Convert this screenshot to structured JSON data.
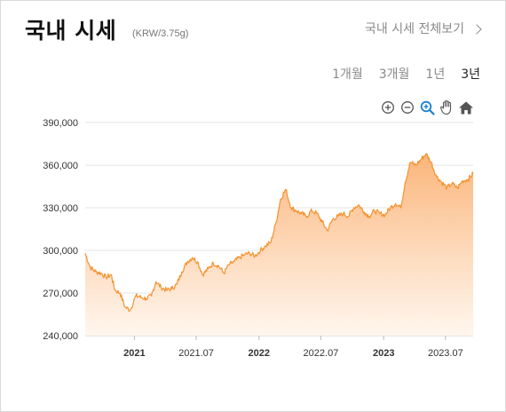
{
  "header": {
    "title": "국내 시세",
    "unit": "(KRW/3.75g)",
    "view_all": "국내 시세 전체보기"
  },
  "ranges": [
    {
      "label": "1개월",
      "active": false
    },
    {
      "label": "3개월",
      "active": false
    },
    {
      "label": "1년",
      "active": false
    },
    {
      "label": "3년",
      "active": true
    }
  ],
  "toolbar": [
    "zoom-in-icon",
    "zoom-out-icon",
    "zoom-select-icon",
    "pan-hand-icon",
    "home-icon"
  ],
  "colors": {
    "line": "#f5922f",
    "fill_top": "#fbb57a",
    "fill_bottom": "#fff5ec",
    "grid": "#e6e6e6",
    "tool_blue": "#1a7fd0"
  },
  "chart_data": {
    "type": "area",
    "y_ticks": [
      "390,000",
      "360,000",
      "330,000",
      "300,000",
      "270,000",
      "240,000"
    ],
    "ylim": [
      240000,
      390000
    ],
    "x_ticks": [
      {
        "label": "2021",
        "date": "2021-01",
        "bold": true
      },
      {
        "label": "2021.07",
        "date": "2021-07",
        "bold": false
      },
      {
        "label": "2022",
        "date": "2022-01",
        "bold": true
      },
      {
        "label": "2022.07",
        "date": "2022-07",
        "bold": false
      },
      {
        "label": "2023",
        "date": "2023-01",
        "bold": true
      },
      {
        "label": "2023.07",
        "date": "2023-07",
        "bold": false
      }
    ],
    "x": [
      "2020-08-10",
      "2020-08-25",
      "2020-09-10",
      "2020-09-25",
      "2020-10-10",
      "2020-10-25",
      "2020-11-05",
      "2020-11-20",
      "2020-12-05",
      "2020-12-20",
      "2021-01-05",
      "2021-01-20",
      "2021-02-05",
      "2021-02-20",
      "2021-03-05",
      "2021-03-20",
      "2021-04-05",
      "2021-04-20",
      "2021-05-05",
      "2021-05-20",
      "2021-06-05",
      "2021-06-20",
      "2021-07-05",
      "2021-07-20",
      "2021-08-05",
      "2021-08-20",
      "2021-09-05",
      "2021-09-20",
      "2021-10-05",
      "2021-10-20",
      "2021-11-05",
      "2021-11-20",
      "2021-12-05",
      "2021-12-20",
      "2022-01-05",
      "2022-01-20",
      "2022-02-05",
      "2022-02-20",
      "2022-03-05",
      "2022-03-20",
      "2022-04-05",
      "2022-04-20",
      "2022-05-05",
      "2022-05-20",
      "2022-06-05",
      "2022-06-20",
      "2022-07-05",
      "2022-07-20",
      "2022-08-05",
      "2022-08-20",
      "2022-09-05",
      "2022-09-20",
      "2022-10-05",
      "2022-10-20",
      "2022-11-05",
      "2022-11-20",
      "2022-12-05",
      "2022-12-20",
      "2023-01-05",
      "2023-01-20",
      "2023-02-05",
      "2023-02-20",
      "2023-03-05",
      "2023-03-20",
      "2023-04-05",
      "2023-04-20",
      "2023-05-05",
      "2023-05-20",
      "2023-06-05",
      "2023-06-20",
      "2023-07-05",
      "2023-07-20",
      "2023-08-05",
      "2023-08-20",
      "2023-09-05",
      "2023-09-20"
    ],
    "values": [
      298000,
      288000,
      285000,
      284000,
      281000,
      283000,
      272000,
      270000,
      260000,
      258000,
      268000,
      267000,
      266000,
      268000,
      278000,
      274000,
      272000,
      273000,
      276000,
      285000,
      292000,
      295000,
      292000,
      283000,
      287000,
      291000,
      289000,
      284000,
      290000,
      292000,
      295000,
      297000,
      298000,
      296000,
      300000,
      303000,
      306000,
      320000,
      336000,
      343000,
      330000,
      328000,
      326000,
      324000,
      328000,
      326000,
      320000,
      314000,
      322000,
      324000,
      326000,
      324000,
      330000,
      332000,
      327000,
      324000,
      328000,
      326000,
      325000,
      330000,
      333000,
      330000,
      348000,
      362000,
      360000,
      364000,
      368000,
      362000,
      352000,
      348000,
      344000,
      347000,
      344000,
      349000,
      350000,
      354000
    ]
  }
}
